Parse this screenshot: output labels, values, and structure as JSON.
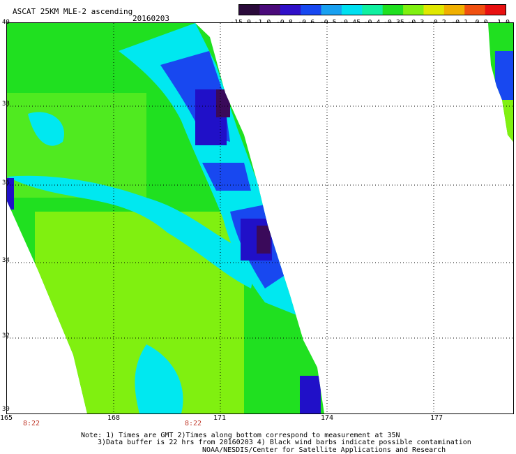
{
  "header": {
    "title": "ASCAT 25KM MLE-2 ascending",
    "date": "20160203"
  },
  "colorbar": {
    "labels": [
      "-15.0",
      "-1.0",
      "-0.8",
      "-0.6",
      "-0.5",
      "-0.45",
      "-0.4",
      "-0.35",
      "-0.3",
      "-0.2",
      "-0.1",
      "0.0",
      "1.0"
    ],
    "colors": [
      "#2a0a3a",
      "#4a0a7a",
      "#3010c8",
      "#1848f0",
      "#18a0f0",
      "#00e0f0",
      "#10f0a0",
      "#20e020",
      "#80f010",
      "#e0e800",
      "#f0b000",
      "#f05010",
      "#e81010"
    ]
  },
  "axes": {
    "x_ticks": [
      "165",
      "168",
      "171",
      "174",
      "177"
    ],
    "y_ticks": [
      "40",
      "38",
      "36",
      "34",
      "32",
      "30"
    ]
  },
  "times": [
    "8:22",
    "8:22"
  ],
  "notes": {
    "line1": "Note: 1) Times are GMT 2)Times along bottom correspond to measurement at 35N",
    "line2": "3)Data buffer is 22 hrs from 20160203 4) Black wind barbs indicate possible contamination",
    "line3": "NOAA/NESDIS/Center for Satellite Applications and Research"
  },
  "palette": {
    "lime": "#80f010",
    "green": "#20e020",
    "cyan": "#00e8f0",
    "blue": "#1848f0",
    "deepblue": "#2010c8",
    "purple": "#3a0a5a"
  }
}
